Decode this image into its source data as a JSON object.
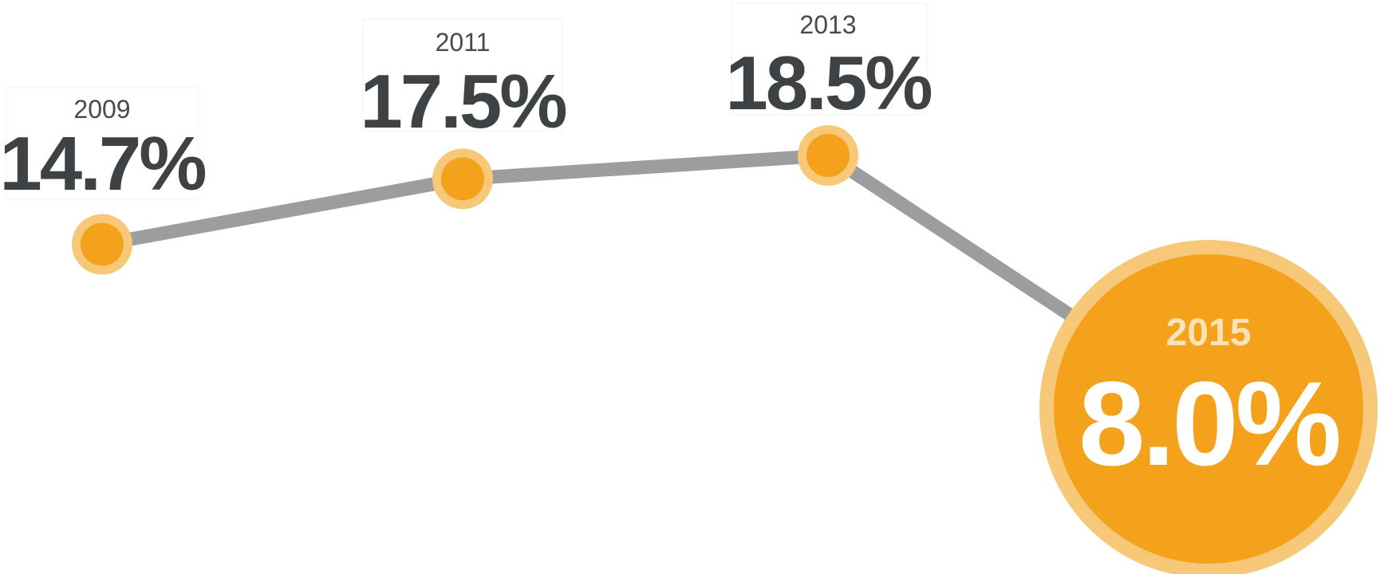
{
  "chart_data": {
    "type": "line",
    "title": "",
    "xlabel": "",
    "ylabel": "",
    "x": [
      "2009",
      "2011",
      "2013",
      "2015"
    ],
    "values": [
      14.7,
      17.5,
      18.5,
      8.0
    ],
    "value_labels": [
      "14.7%",
      "17.5%",
      "18.5%",
      "8.0%"
    ],
    "highlight_index": 3,
    "ylim": [
      0,
      20
    ],
    "grid": false,
    "legend": "none"
  },
  "colors": {
    "line": "#9d9d9d",
    "marker_fill": "#f4a11c",
    "marker_ring": "#f7c878",
    "highlight_year_text": "#fbe3b8",
    "value_text": "#3e4244",
    "year_text": "#4a4a4a"
  }
}
